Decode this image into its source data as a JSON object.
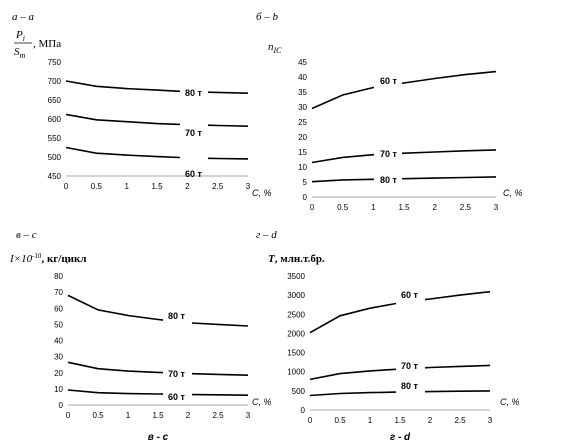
{
  "chart_data": [
    {
      "type": "line",
      "panel_label": "а – а",
      "ylabel_num": "P",
      "ylabel_num_sub": "i",
      "ylabel_den": "S",
      "ylabel_den_sub": "m",
      "ylabel_unit": ", МПа",
      "xlabel": "C, %",
      "caption": "",
      "x": [
        0,
        0.5,
        1,
        1.5,
        2,
        2.5,
        3
      ],
      "xticks": [
        "0",
        "0.5",
        "1",
        "1.5",
        "2",
        "2.5",
        "3"
      ],
      "ylim": [
        450,
        750
      ],
      "yticks": [
        "450",
        "500",
        "550",
        "600",
        "650",
        "700",
        "750"
      ],
      "grid": false,
      "series": [
        {
          "name": "80 т",
          "values": [
            700,
            686,
            680,
            676,
            672,
            670,
            668
          ]
        },
        {
          "name": "70 т",
          "values": [
            612,
            598,
            593,
            588,
            585,
            583,
            581
          ]
        },
        {
          "name": "60 т",
          "values": [
            525,
            510,
            505,
            501,
            498,
            496,
            495
          ]
        }
      ]
    },
    {
      "type": "line",
      "panel_label": "б – b",
      "ylabel_main": "n",
      "ylabel_sub": "IC",
      "xlabel": "C, %",
      "caption": "",
      "x": [
        0,
        0.5,
        1,
        1.5,
        2,
        2.5,
        3
      ],
      "xticks": [
        "0",
        "0.5",
        "1",
        "1.5",
        "2",
        "2.5",
        "3"
      ],
      "ylim": [
        0,
        45
      ],
      "yticks": [
        "0",
        "5",
        "10",
        "15",
        "20",
        "25",
        "30",
        "35",
        "40",
        "45"
      ],
      "grid": false,
      "series": [
        {
          "name": "60 т",
          "values": [
            29.5,
            34,
            36.5,
            38,
            39.5,
            40.8,
            41.8
          ]
        },
        {
          "name": "70 т",
          "values": [
            11.5,
            13.2,
            14.1,
            14.6,
            15.0,
            15.4,
            15.7
          ]
        },
        {
          "name": "80 т",
          "values": [
            5.1,
            5.7,
            5.9,
            6.1,
            6.3,
            6.5,
            6.7
          ]
        }
      ]
    },
    {
      "type": "line",
      "panel_label": "в – с",
      "ylabel_main": "I×10",
      "ylabel_sup": "-10",
      "ylabel_unit": ", кг/цикл",
      "xlabel": "C, %",
      "caption": "в - с",
      "x": [
        0,
        0.5,
        1,
        1.5,
        2,
        2.5,
        3
      ],
      "xticks": [
        "0",
        "0.5",
        "1",
        "1.5",
        "2",
        "2.5",
        "3"
      ],
      "ylim": [
        0,
        80
      ],
      "yticks": [
        "0",
        "10",
        "20",
        "30",
        "40",
        "50",
        "60",
        "70",
        "80"
      ],
      "grid": false,
      "series": [
        {
          "name": "80 т",
          "values": [
            68,
            59,
            55.5,
            53,
            51,
            50,
            49
          ]
        },
        {
          "name": "70 т",
          "values": [
            26.5,
            22.5,
            21,
            20.2,
            19.5,
            19,
            18.5
          ]
        },
        {
          "name": "60 т",
          "values": [
            9.3,
            7.6,
            7.1,
            6.8,
            6.5,
            6.3,
            6.1
          ]
        }
      ]
    },
    {
      "type": "line",
      "panel_label": "г – d",
      "ylabel_main": "T",
      "ylabel_unit": ", млн.т.бр.",
      "xlabel": "C, %",
      "caption": "г - d",
      "x": [
        0,
        0.5,
        1,
        1.5,
        2,
        2.5,
        3
      ],
      "xticks": [
        "0",
        "0.5",
        "1",
        "1.5",
        "2",
        "2.5",
        "3"
      ],
      "ylim": [
        0,
        3500
      ],
      "yticks": [
        "0",
        "500",
        "1000",
        "1500",
        "2000",
        "2500",
        "3000",
        "3500"
      ],
      "grid": false,
      "series": [
        {
          "name": "60 т",
          "values": [
            2020,
            2460,
            2660,
            2800,
            2900,
            3000,
            3090
          ]
        },
        {
          "name": "70 т",
          "values": [
            800,
            950,
            1020,
            1070,
            1110,
            1140,
            1165
          ]
        },
        {
          "name": "80 т",
          "values": [
            380,
            430,
            455,
            470,
            480,
            490,
            500
          ]
        }
      ]
    }
  ]
}
